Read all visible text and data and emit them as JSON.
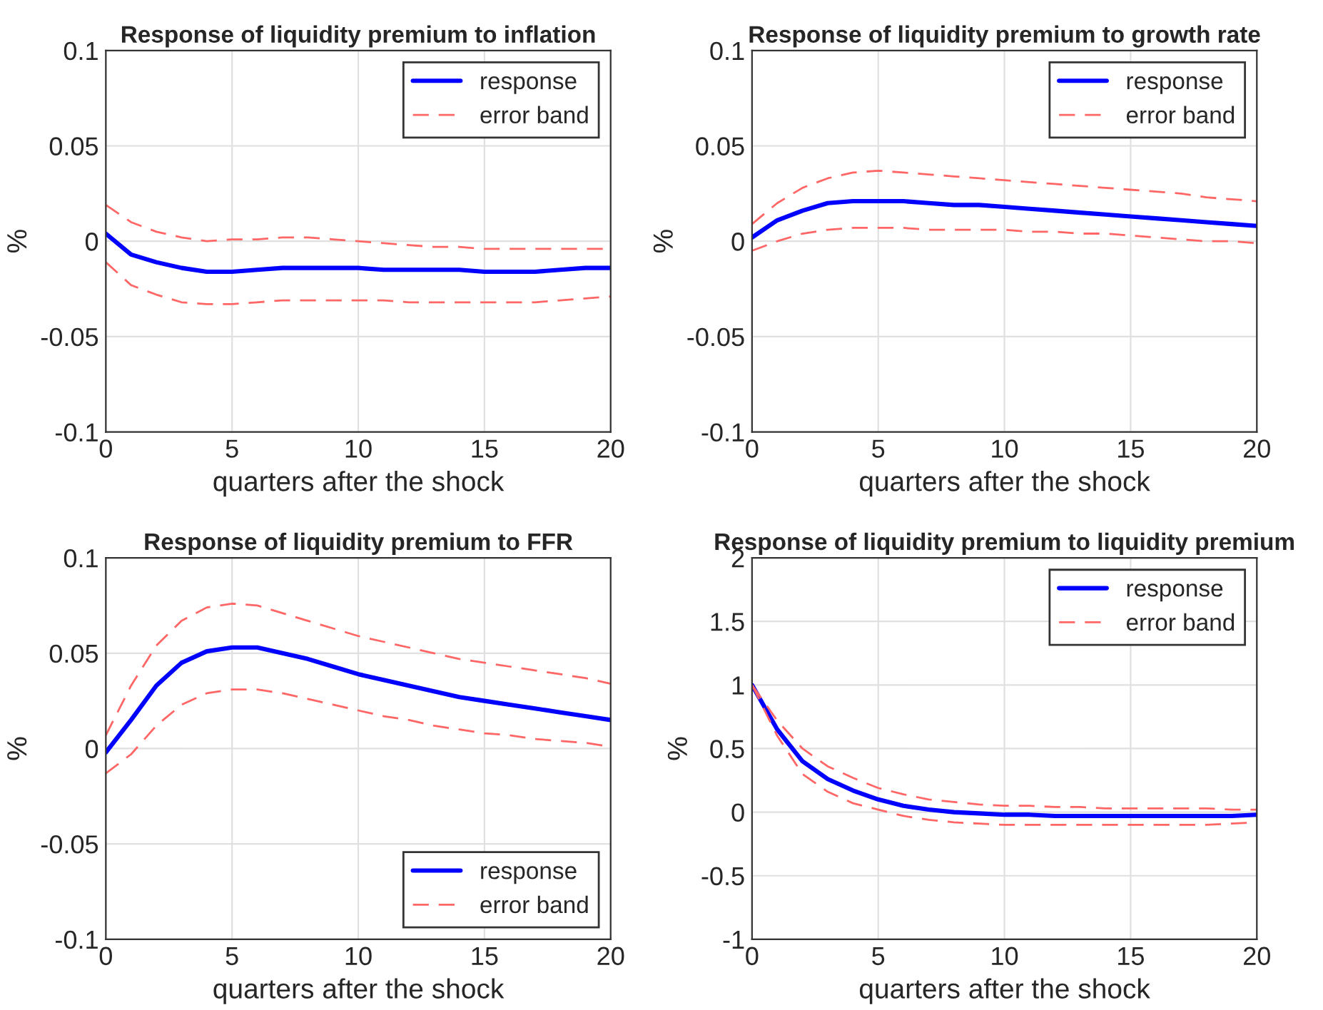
{
  "chart_data": [
    {
      "type": "line",
      "title": "Response of liquidity premium to inflation",
      "xlabel": "quarters after the shock",
      "ylabel": "%",
      "x": [
        0,
        1,
        2,
        3,
        4,
        5,
        6,
        7,
        8,
        9,
        10,
        11,
        12,
        13,
        14,
        15,
        16,
        17,
        18,
        19,
        20
      ],
      "xlim": [
        0,
        20
      ],
      "xticks": [
        0,
        5,
        10,
        15,
        20
      ],
      "ylim": [
        -0.1,
        0.1
      ],
      "yticks": [
        -0.1,
        -0.05,
        0,
        0.05,
        0.1
      ],
      "grid": true,
      "legend": "top right",
      "series": [
        {
          "name": "response",
          "color": "#0000ff",
          "line_style": "solid",
          "values": [
            0.004,
            -0.007,
            -0.011,
            -0.014,
            -0.016,
            -0.016,
            -0.015,
            -0.014,
            -0.014,
            -0.014,
            -0.014,
            -0.015,
            -0.015,
            -0.015,
            -0.015,
            -0.016,
            -0.016,
            -0.016,
            -0.015,
            -0.014,
            -0.014
          ]
        },
        {
          "name": "error band",
          "color": "#ff6666",
          "line_style": "dashed",
          "values": [
            0.019,
            0.01,
            0.005,
            0.002,
            0.0,
            0.001,
            0.001,
            0.002,
            0.002,
            0.001,
            0.0,
            -0.001,
            -0.002,
            -0.003,
            -0.003,
            -0.004,
            -0.004,
            -0.004,
            -0.004,
            -0.004,
            -0.004
          ]
        },
        {
          "color": "#ff6666",
          "line_style": "dashed",
          "values": [
            -0.011,
            -0.023,
            -0.028,
            -0.032,
            -0.033,
            -0.033,
            -0.032,
            -0.031,
            -0.031,
            -0.031,
            -0.031,
            -0.031,
            -0.032,
            -0.032,
            -0.032,
            -0.032,
            -0.032,
            -0.032,
            -0.031,
            -0.03,
            -0.029
          ]
        }
      ]
    },
    {
      "type": "line",
      "title": "Response of liquidity premium to growth rate",
      "xlabel": "quarters after the shock",
      "ylabel": "%",
      "x": [
        0,
        1,
        2,
        3,
        4,
        5,
        6,
        7,
        8,
        9,
        10,
        11,
        12,
        13,
        14,
        15,
        16,
        17,
        18,
        19,
        20
      ],
      "xlim": [
        0,
        20
      ],
      "xticks": [
        0,
        5,
        10,
        15,
        20
      ],
      "ylim": [
        -0.1,
        0.1
      ],
      "yticks": [
        -0.1,
        -0.05,
        0,
        0.05,
        0.1
      ],
      "grid": true,
      "legend": "top right",
      "series": [
        {
          "name": "response",
          "color": "#0000ff",
          "line_style": "solid",
          "values": [
            0.002,
            0.011,
            0.016,
            0.02,
            0.021,
            0.021,
            0.021,
            0.02,
            0.019,
            0.019,
            0.018,
            0.017,
            0.016,
            0.015,
            0.014,
            0.013,
            0.012,
            0.011,
            0.01,
            0.009,
            0.008
          ]
        },
        {
          "name": "error band",
          "color": "#ff6666",
          "line_style": "dashed",
          "values": [
            0.009,
            0.02,
            0.028,
            0.033,
            0.036,
            0.037,
            0.036,
            0.035,
            0.034,
            0.033,
            0.032,
            0.031,
            0.03,
            0.029,
            0.028,
            0.027,
            0.026,
            0.025,
            0.023,
            0.022,
            0.021
          ]
        },
        {
          "color": "#ff6666",
          "line_style": "dashed",
          "values": [
            -0.005,
            0.0,
            0.004,
            0.006,
            0.007,
            0.007,
            0.007,
            0.006,
            0.006,
            0.006,
            0.006,
            0.005,
            0.005,
            0.004,
            0.004,
            0.003,
            0.002,
            0.001,
            0.0,
            0.0,
            -0.001
          ]
        }
      ]
    },
    {
      "type": "line",
      "title": "Response of liquidity premium to FFR",
      "xlabel": "quarters after the shock",
      "ylabel": "%",
      "x": [
        0,
        1,
        2,
        3,
        4,
        5,
        6,
        7,
        8,
        9,
        10,
        11,
        12,
        13,
        14,
        15,
        16,
        17,
        18,
        19,
        20
      ],
      "xlim": [
        0,
        20
      ],
      "xticks": [
        0,
        5,
        10,
        15,
        20
      ],
      "ylim": [
        -0.1,
        0.1
      ],
      "yticks": [
        -0.1,
        -0.05,
        0,
        0.05,
        0.1
      ],
      "grid": true,
      "legend": "bottom right",
      "series": [
        {
          "name": "response",
          "color": "#0000ff",
          "line_style": "solid",
          "values": [
            -0.002,
            0.015,
            0.033,
            0.045,
            0.051,
            0.053,
            0.053,
            0.05,
            0.047,
            0.043,
            0.039,
            0.036,
            0.033,
            0.03,
            0.027,
            0.025,
            0.023,
            0.021,
            0.019,
            0.017,
            0.015
          ]
        },
        {
          "name": "error band",
          "color": "#ff6666",
          "line_style": "dashed",
          "values": [
            0.007,
            0.033,
            0.054,
            0.067,
            0.074,
            0.076,
            0.075,
            0.071,
            0.067,
            0.063,
            0.059,
            0.056,
            0.053,
            0.05,
            0.047,
            0.045,
            0.043,
            0.041,
            0.039,
            0.037,
            0.034
          ]
        },
        {
          "color": "#ff6666",
          "line_style": "dashed",
          "values": [
            -0.013,
            -0.003,
            0.012,
            0.023,
            0.029,
            0.031,
            0.031,
            0.029,
            0.026,
            0.023,
            0.02,
            0.017,
            0.015,
            0.012,
            0.01,
            0.008,
            0.007,
            0.005,
            0.004,
            0.003,
            0.001
          ]
        }
      ]
    },
    {
      "type": "line",
      "title": "Response of liquidity premium to liquidity premium",
      "xlabel": "quarters after the shock",
      "ylabel": "%",
      "x": [
        0,
        1,
        2,
        3,
        4,
        5,
        6,
        7,
        8,
        9,
        10,
        11,
        12,
        13,
        14,
        15,
        16,
        17,
        18,
        19,
        20
      ],
      "xlim": [
        0,
        20
      ],
      "xticks": [
        0,
        5,
        10,
        15,
        20
      ],
      "ylim": [
        -1,
        2
      ],
      "yticks": [
        -1,
        -0.5,
        0,
        0.5,
        1,
        1.5,
        2
      ],
      "grid": true,
      "legend": "top right",
      "series": [
        {
          "name": "response",
          "color": "#0000ff",
          "line_style": "solid",
          "values": [
            1.0,
            0.65,
            0.4,
            0.26,
            0.17,
            0.1,
            0.05,
            0.02,
            0.0,
            -0.01,
            -0.02,
            -0.02,
            -0.03,
            -0.03,
            -0.03,
            -0.03,
            -0.03,
            -0.03,
            -0.03,
            -0.03,
            -0.02
          ]
        },
        {
          "name": "error band",
          "color": "#ff6666",
          "line_style": "dashed",
          "values": [
            1.0,
            0.72,
            0.5,
            0.36,
            0.27,
            0.19,
            0.14,
            0.1,
            0.08,
            0.06,
            0.05,
            0.05,
            0.04,
            0.04,
            0.03,
            0.03,
            0.03,
            0.03,
            0.03,
            0.02,
            0.02
          ]
        },
        {
          "color": "#ff6666",
          "line_style": "dashed",
          "values": [
            1.0,
            0.6,
            0.3,
            0.16,
            0.07,
            0.02,
            -0.03,
            -0.06,
            -0.08,
            -0.09,
            -0.1,
            -0.1,
            -0.1,
            -0.1,
            -0.1,
            -0.1,
            -0.1,
            -0.1,
            -0.1,
            -0.09,
            -0.08
          ]
        }
      ]
    }
  ]
}
